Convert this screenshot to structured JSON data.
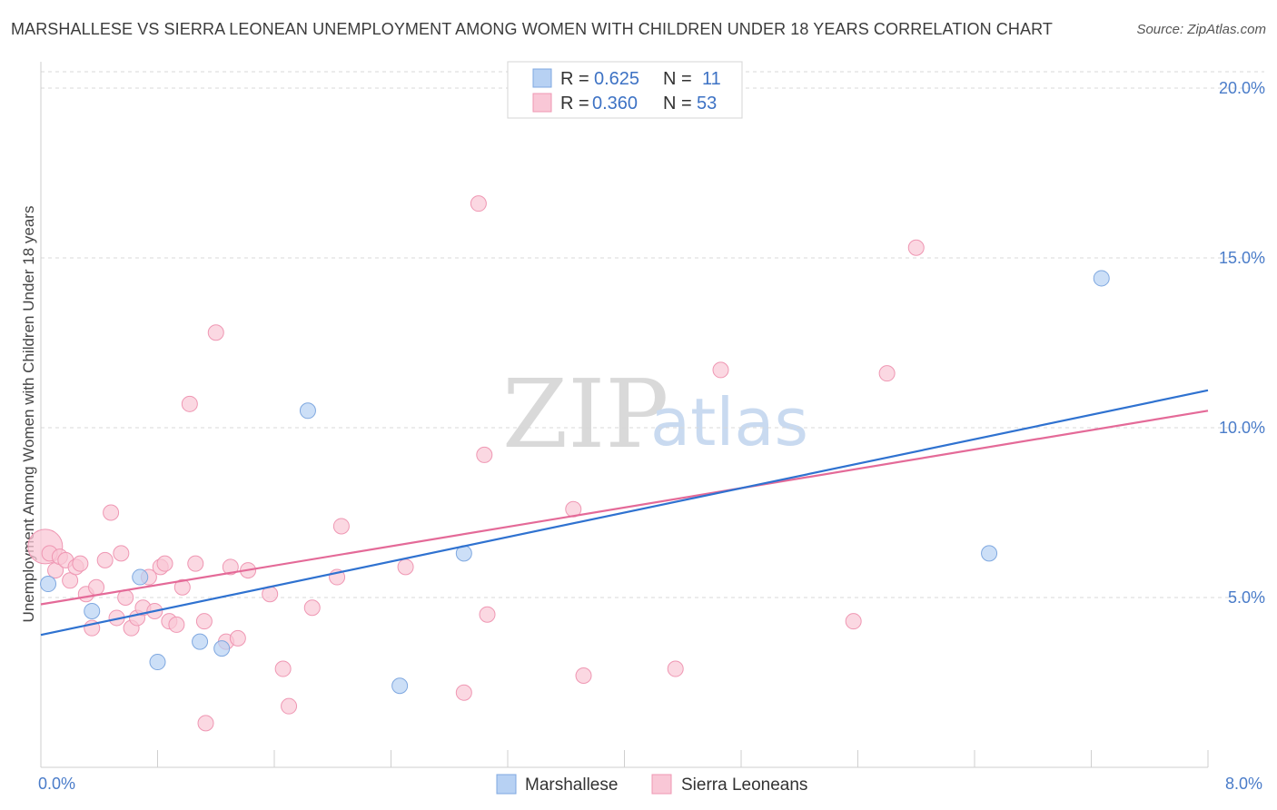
{
  "title": "MARSHALLESE VS SIERRA LEONEAN UNEMPLOYMENT AMONG WOMEN WITH CHILDREN UNDER 18 YEARS CORRELATION CHART",
  "source": "Source: ZipAtlas.com",
  "watermark": {
    "zip": "ZIP",
    "atlas": "atlas"
  },
  "colors": {
    "blue_fill": "#b7d1f3",
    "blue_stroke": "#7fa8e0",
    "blue_line": "#2f72d0",
    "pink_fill": "#f9c7d6",
    "pink_stroke": "#ef97b3",
    "pink_line": "#e46a98",
    "grid": "#d8d8d8",
    "tick_text": "#4a7cc9"
  },
  "legend": {
    "r_label": "R =",
    "n_label": "N =",
    "rows": [
      {
        "series": "Marshallese",
        "r": "0.625",
        "n": "11"
      },
      {
        "series": "Sierra Leoneans",
        "r": "0.360",
        "n": "53"
      }
    ]
  },
  "chart_data": {
    "type": "scatter",
    "title": "MARSHALLESE VS SIERRA LEONEAN UNEMPLOYMENT AMONG WOMEN WITH CHILDREN UNDER 18 YEARS CORRELATION CHART",
    "xlabel": "",
    "ylabel": "Unemployment Among Women with Children Under 18 years",
    "xlim": [
      0,
      8
    ],
    "ylim": [
      0,
      20
    ],
    "x_tick_labels": [
      "0.0%",
      "8.0%"
    ],
    "y_ticks": [
      5,
      10,
      15,
      20
    ],
    "y_tick_labels": [
      "5.0%",
      "10.0%",
      "15.0%",
      "20.0%"
    ],
    "grid": true,
    "legend_position": "top-center",
    "series": [
      {
        "name": "Marshallese",
        "color": "blue",
        "points": [
          [
            0.05,
            5.4
          ],
          [
            0.35,
            4.6
          ],
          [
            0.68,
            5.6
          ],
          [
            0.8,
            3.1
          ],
          [
            1.09,
            3.7
          ],
          [
            1.24,
            3.5
          ],
          [
            1.83,
            10.5
          ],
          [
            2.46,
            2.4
          ],
          [
            2.9,
            6.3
          ],
          [
            6.5,
            6.3
          ],
          [
            7.27,
            14.4
          ]
        ],
        "trend": {
          "x0": 0,
          "y0": 3.9,
          "x1": 8,
          "y1": 11.1
        }
      },
      {
        "name": "Sierra Leoneans",
        "color": "pink",
        "points": [
          [
            0.03,
            6.5
          ],
          [
            0.06,
            6.3
          ],
          [
            0.1,
            5.8
          ],
          [
            0.13,
            6.2
          ],
          [
            0.17,
            6.1
          ],
          [
            0.2,
            5.5
          ],
          [
            0.24,
            5.9
          ],
          [
            0.27,
            6.0
          ],
          [
            0.31,
            5.1
          ],
          [
            0.35,
            4.1
          ],
          [
            0.38,
            5.3
          ],
          [
            0.44,
            6.1
          ],
          [
            0.48,
            7.5
          ],
          [
            0.52,
            4.4
          ],
          [
            0.55,
            6.3
          ],
          [
            0.58,
            5.0
          ],
          [
            0.62,
            4.1
          ],
          [
            0.66,
            4.4
          ],
          [
            0.7,
            4.7
          ],
          [
            0.74,
            5.6
          ],
          [
            0.78,
            4.6
          ],
          [
            0.82,
            5.9
          ],
          [
            0.85,
            6.0
          ],
          [
            0.88,
            4.3
          ],
          [
            0.93,
            4.2
          ],
          [
            0.97,
            5.3
          ],
          [
            1.02,
            10.7
          ],
          [
            1.06,
            6.0
          ],
          [
            1.12,
            4.3
          ],
          [
            1.13,
            1.3
          ],
          [
            1.2,
            12.8
          ],
          [
            1.27,
            3.7
          ],
          [
            1.3,
            5.9
          ],
          [
            1.35,
            3.8
          ],
          [
            1.42,
            5.8
          ],
          [
            1.57,
            5.1
          ],
          [
            1.66,
            2.9
          ],
          [
            1.7,
            1.8
          ],
          [
            1.86,
            4.7
          ],
          [
            2.03,
            5.6
          ],
          [
            2.06,
            7.1
          ],
          [
            2.5,
            5.9
          ],
          [
            2.9,
            2.2
          ],
          [
            3.0,
            16.6
          ],
          [
            3.04,
            9.2
          ],
          [
            3.06,
            4.5
          ],
          [
            3.65,
            7.6
          ],
          [
            3.72,
            2.7
          ],
          [
            4.35,
            2.9
          ],
          [
            4.66,
            11.7
          ],
          [
            5.57,
            4.3
          ],
          [
            5.8,
            11.6
          ],
          [
            6.0,
            15.3
          ]
        ],
        "trend": {
          "x0": 0,
          "y0": 4.8,
          "x1": 8,
          "y1": 10.5
        }
      }
    ]
  }
}
